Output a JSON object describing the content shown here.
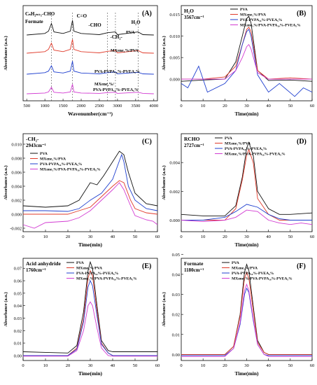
{
  "figure": {
    "panels": [
      {
        "id": "A",
        "letter": "(A)",
        "ylabel": "Absorbance (a.u.)",
        "xlabel": "Wavenumber(cm⁻¹)",
        "xticks": [
          "500",
          "1000",
          "1500",
          "2000",
          "2500",
          "3000",
          "3500",
          "4000"
        ],
        "annotations": [
          "CₙH₂ₙ₊₁-CHO",
          "Formate",
          "C=O",
          "-CHO",
          "-CH₂-",
          "H₂O"
        ],
        "trace_labels": [
          "PVA",
          "MXene₁%/PVA",
          "PVA-PVPA₁₀%-PVEA₅%",
          "MXene₁%/",
          "PVA-PVPA₁₀%-PVEA₅%"
        ]
      },
      {
        "id": "B",
        "letter": "(B)",
        "title": "H₂O",
        "subtitle": "3567cm⁻¹",
        "ylabel": "Absorbance (a.u.)",
        "xlabel": "Time(min)",
        "xticks": [
          "0",
          "10",
          "20",
          "30",
          "40",
          "50",
          "60"
        ],
        "yticks": [
          "0.000",
          "0.005",
          "0.010",
          "0.015"
        ]
      },
      {
        "id": "C",
        "letter": "(C)",
        "title": "-CH₂-",
        "subtitle": "2943cm⁻¹",
        "ylabel": "Absorbance (a.u.)",
        "xlabel": "Time(min)",
        "xticks": [
          "0",
          "10",
          "20",
          "30",
          "40",
          "50",
          "60"
        ],
        "yticks": [
          "-0.002",
          "0.000",
          "0.002",
          "0.004",
          "0.006",
          "0.008",
          "0.010"
        ]
      },
      {
        "id": "D",
        "letter": "(D)",
        "title": "RCHO",
        "subtitle": "2727cm⁻¹",
        "ylabel": "Absorbance (a.u.)",
        "xlabel": "Time(min)",
        "xticks": [
          "0",
          "10",
          "20",
          "30",
          "40",
          "50",
          "60"
        ],
        "yticks": [
          "0.000",
          "0.002",
          "0.004"
        ]
      },
      {
        "id": "E",
        "letter": "(E)",
        "title": "Acid anhydride",
        "subtitle": "1760cm⁻¹",
        "ylabel": "Absorbance (a.u.)",
        "xlabel": "Time(min)",
        "xticks": [
          "0",
          "10",
          "20",
          "30",
          "40",
          "50",
          "60"
        ],
        "yticks": [
          "0.00",
          "0.01",
          "0.02",
          "0.03",
          "0.04",
          "0.05",
          "0.06",
          "0.07"
        ]
      },
      {
        "id": "F",
        "letter": "(F)",
        "title": "Formate",
        "subtitle": "1180cm⁻¹",
        "ylabel": "Absorbance (a.u.)",
        "xlabel": "Time(min)",
        "xticks": [
          "0",
          "10",
          "20",
          "30",
          "40",
          "50",
          "60"
        ],
        "yticks": [
          "0.00",
          "0.01",
          "0.02",
          "0.03",
          "0.04",
          "0.05"
        ]
      }
    ],
    "legend": [
      "PVA",
      "MXene₁%/PVA",
      "PVA-PVPA₁₀%-PVEA₅%",
      "MXene₁%/PVA-PVPA₁₀%-PVEA₅%"
    ],
    "colors": {
      "PVA": "#111111",
      "MXene/PVA": "#e03a2a",
      "PVA-PVPA-PVEA": "#1f3fcf",
      "MXene/PVA-PVPA-PVEA": "#d23bd2"
    }
  },
  "chart_data": [
    {
      "type": "line",
      "panel": "A",
      "x_domain": [
        400,
        4100
      ],
      "series": [
        {
          "name": "PVA",
          "x": [
            500,
            1000,
            1100,
            1180,
            1250,
            1500,
            1700,
            1760,
            1800,
            2000,
            2500,
            2727,
            2943,
            3000,
            3567,
            3700,
            4000
          ],
          "values": [
            0.62,
            0.66,
            0.72,
            0.92,
            0.7,
            0.66,
            0.72,
            1.0,
            0.72,
            0.66,
            0.63,
            0.68,
            0.7,
            0.63,
            0.7,
            0.63,
            0.62
          ]
        },
        {
          "name": "MXene₁%/PVA",
          "x": [
            500,
            1000,
            1100,
            1180,
            1250,
            1500,
            1700,
            1760,
            1800,
            2000,
            2500,
            2727,
            2943,
            3000,
            3567,
            3700,
            4000
          ],
          "values": [
            0.42,
            0.46,
            0.52,
            0.68,
            0.5,
            0.46,
            0.52,
            0.78,
            0.52,
            0.46,
            0.43,
            0.47,
            0.49,
            0.43,
            0.49,
            0.43,
            0.42
          ]
        },
        {
          "name": "PVA-PVPA₁₀%-PVEA₅%",
          "x": [
            500,
            1000,
            1100,
            1180,
            1250,
            1500,
            1700,
            1760,
            1800,
            2000,
            2500,
            2727,
            2943,
            3000,
            3567,
            3700,
            4000
          ],
          "values": [
            0.22,
            0.26,
            0.3,
            0.44,
            0.28,
            0.25,
            0.3,
            0.56,
            0.3,
            0.25,
            0.23,
            0.26,
            0.28,
            0.23,
            0.27,
            0.23,
            0.22
          ]
        },
        {
          "name": "MXene₁%/PVA-PVPA₁₀%-PVEA₅%",
          "x": [
            500,
            1000,
            1100,
            1180,
            1250,
            1500,
            1700,
            1760,
            1800,
            2000,
            2500,
            2727,
            2943,
            3000,
            3567,
            3700,
            4000
          ],
          "values": [
            0.05,
            0.07,
            0.1,
            0.22,
            0.09,
            0.07,
            0.1,
            0.3,
            0.1,
            0.07,
            0.06,
            0.08,
            0.09,
            0.06,
            0.09,
            0.06,
            0.05
          ]
        }
      ]
    },
    {
      "type": "line",
      "panel": "B",
      "xlim": [
        0,
        60
      ],
      "ylim": [
        -0.005,
        0.017
      ],
      "series": [
        {
          "name": "PVA",
          "x": [
            0,
            10,
            20,
            25,
            28,
            30,
            31,
            32,
            35,
            40,
            50,
            60
          ],
          "values": [
            -0.0005,
            -0.0002,
            0.0,
            0.004,
            0.01,
            0.014,
            0.0145,
            0.013,
            0.002,
            -0.0003,
            -0.0002,
            -0.0005
          ]
        },
        {
          "name": "MXene₁%/PVA",
          "x": [
            0,
            10,
            20,
            25,
            28,
            30,
            31,
            32,
            35,
            40,
            50,
            60
          ],
          "values": [
            0.0,
            0.0,
            0.0005,
            0.003,
            0.008,
            0.0115,
            0.012,
            0.011,
            0.002,
            0.0,
            0.0003,
            0.0
          ]
        },
        {
          "name": "PVA-PVPA₁₀%-PVEA₅%",
          "x": [
            0,
            3,
            8,
            12,
            20,
            25,
            28,
            30,
            31,
            32,
            35,
            40,
            45,
            52,
            56,
            60
          ],
          "values": [
            -0.001,
            -0.002,
            0.003,
            -0.003,
            -0.001,
            0.002,
            0.008,
            0.011,
            0.0115,
            0.01,
            0.001,
            -0.003,
            -0.001,
            -0.004,
            -0.002,
            -0.003
          ]
        },
        {
          "name": "MXene₁%/PVA-PVPA₁₀%-PVEA₅%",
          "x": [
            0,
            10,
            20,
            25,
            28,
            30,
            31,
            32,
            35,
            40,
            50,
            60
          ],
          "values": [
            0.0,
            0.0,
            0.0,
            0.002,
            0.005,
            0.0075,
            0.008,
            0.007,
            0.0015,
            0.0,
            0.0,
            0.0
          ]
        }
      ]
    },
    {
      "type": "line",
      "panel": "C",
      "xlim": [
        0,
        60
      ],
      "ylim": [
        -0.0025,
        0.0115
      ],
      "series": [
        {
          "name": "PVA",
          "x": [
            0,
            10,
            20,
            25,
            30,
            33,
            36,
            40,
            43,
            45,
            47,
            50,
            55,
            60
          ],
          "values": [
            0.0012,
            0.001,
            0.0012,
            0.002,
            0.0045,
            0.0042,
            0.0055,
            0.0075,
            0.009,
            0.0085,
            0.006,
            0.003,
            0.0015,
            0.0012
          ]
        },
        {
          "name": "MXene₁%/PVA",
          "x": [
            0,
            10,
            20,
            25,
            30,
            35,
            40,
            43,
            45,
            48,
            50,
            55,
            60
          ],
          "values": [
            0.0,
            0.0,
            0.0,
            0.0005,
            0.001,
            0.0025,
            0.004,
            0.0048,
            0.0045,
            0.002,
            0.0008,
            0.0002,
            0.0
          ]
        },
        {
          "name": "PVA-PVPA₁₀%-PVEA₅%",
          "x": [
            0,
            10,
            20,
            25,
            30,
            35,
            40,
            44,
            45,
            47,
            50,
            55,
            60
          ],
          "values": [
            0.0005,
            0.0005,
            0.0004,
            0.0008,
            0.002,
            0.003,
            0.005,
            0.0085,
            0.0075,
            0.004,
            0.002,
            0.0008,
            0.0005
          ]
        },
        {
          "name": "MXene₁%/PVA-PVPA₁₀%-PVEA₅%",
          "x": [
            0,
            5,
            10,
            20,
            25,
            30,
            35,
            40,
            43,
            45,
            48,
            50,
            55,
            58,
            60
          ],
          "values": [
            -0.0015,
            -0.002,
            -0.0012,
            -0.001,
            -0.0005,
            0.0005,
            0.002,
            0.0035,
            0.0045,
            0.0035,
            0.0012,
            -0.0002,
            -0.0008,
            -0.001,
            -0.0015
          ]
        }
      ]
    },
    {
      "type": "line",
      "panel": "D",
      "xlim": [
        0,
        60
      ],
      "ylim": [
        -0.0008,
        0.006
      ],
      "series": [
        {
          "name": "PVA",
          "x": [
            0,
            10,
            20,
            25,
            28,
            30,
            31,
            33,
            35,
            40,
            45,
            50,
            60
          ],
          "values": [
            0.0004,
            0.0003,
            0.0003,
            0.001,
            0.003,
            0.005,
            0.0054,
            0.0045,
            0.002,
            0.0008,
            0.0004,
            0.0004,
            0.0005
          ]
        },
        {
          "name": "MXene₁%/PVA",
          "x": [
            0,
            10,
            20,
            25,
            28,
            30,
            31,
            33,
            35,
            40,
            45,
            50,
            60
          ],
          "values": [
            0.0,
            0.0,
            0.0,
            0.0008,
            0.0028,
            0.0045,
            0.0049,
            0.004,
            0.0015,
            0.0004,
            0.0,
            0.0,
            0.0
          ]
        },
        {
          "name": "PVA-PVPA₁₀%-PVEA₅%",
          "x": [
            0,
            10,
            20,
            25,
            30,
            35,
            40,
            45,
            50,
            60
          ],
          "values": [
            0.0,
            0.0,
            0.0002,
            0.0006,
            0.0011,
            0.0009,
            0.0004,
            0.0001,
            0.0,
            0.0
          ]
        },
        {
          "name": "MXene₁%/PVA-PVPA₁₀%-PVEA₅%",
          "x": [
            0,
            10,
            20,
            25,
            30,
            35,
            40,
            45,
            50,
            55,
            60
          ],
          "values": [
            0.0,
            -0.0001,
            0.0,
            0.0002,
            0.0007,
            0.0006,
            0.0,
            -0.0002,
            -0.0003,
            -0.0002,
            -0.0003
          ]
        }
      ]
    },
    {
      "type": "line",
      "panel": "E",
      "xlim": [
        0,
        60
      ],
      "ylim": [
        -0.004,
        0.078
      ],
      "series": [
        {
          "name": "PVA",
          "x": [
            0,
            10,
            20,
            24,
            27,
            29,
            30,
            31,
            33,
            35,
            38,
            40,
            50,
            60
          ],
          "values": [
            0.003,
            0.0025,
            0.002,
            0.008,
            0.035,
            0.068,
            0.075,
            0.07,
            0.04,
            0.012,
            0.004,
            0.003,
            0.003,
            0.003
          ]
        },
        {
          "name": "MXene₁%/PVA",
          "x": [
            0,
            10,
            20,
            24,
            27,
            29,
            30,
            31,
            33,
            35,
            38,
            40,
            50,
            60
          ],
          "values": [
            0.0,
            0.0,
            0.0,
            0.006,
            0.03,
            0.062,
            0.068,
            0.064,
            0.036,
            0.01,
            0.002,
            0.0,
            0.0,
            0.0
          ]
        },
        {
          "name": "PVA-PVPA₁₀%-PVEA₅%",
          "x": [
            0,
            10,
            20,
            24,
            27,
            29,
            30,
            31,
            33,
            35,
            38,
            40,
            50,
            60
          ],
          "values": [
            0.0,
            0.0,
            0.0,
            0.005,
            0.027,
            0.055,
            0.06,
            0.056,
            0.032,
            0.009,
            0.002,
            0.0,
            0.0,
            0.0
          ]
        },
        {
          "name": "MXene₁%/PVA-PVPA₁₀%-PVEA₅%",
          "x": [
            0,
            10,
            20,
            24,
            27,
            29,
            30,
            31,
            33,
            35,
            38,
            40,
            50,
            60
          ],
          "values": [
            -0.0005,
            -0.0005,
            -0.0005,
            0.004,
            0.02,
            0.04,
            0.043,
            0.04,
            0.022,
            0.006,
            0.0,
            -0.0005,
            -0.0005,
            -0.0005
          ]
        }
      ]
    },
    {
      "type": "line",
      "panel": "F",
      "xlim": [
        0,
        60
      ],
      "ylim": [
        -0.003,
        0.048
      ],
      "series": [
        {
          "name": "PVA",
          "x": [
            0,
            10,
            20,
            24,
            27,
            29,
            30,
            31,
            33,
            35,
            38,
            40,
            50,
            60
          ],
          "values": [
            0.0,
            0.0,
            0.0,
            0.004,
            0.02,
            0.041,
            0.045,
            0.042,
            0.024,
            0.007,
            0.001,
            0.0,
            0.0,
            0.0
          ]
        },
        {
          "name": "MXene₁%/PVA",
          "x": [
            0,
            10,
            20,
            24,
            27,
            29,
            30,
            31,
            33,
            35,
            38,
            40,
            50,
            60
          ],
          "values": [
            0.0,
            0.0,
            0.0,
            0.004,
            0.019,
            0.038,
            0.041,
            0.038,
            0.022,
            0.006,
            0.001,
            0.0,
            0.0,
            0.0
          ]
        },
        {
          "name": "PVA-PVPA₁₀%-PVEA₅%",
          "x": [
            0,
            10,
            20,
            24,
            27,
            29,
            30,
            31,
            33,
            35,
            38,
            40,
            50,
            60
          ],
          "values": [
            -0.0005,
            -0.0005,
            -0.0005,
            0.003,
            0.015,
            0.03,
            0.033,
            0.031,
            0.017,
            0.005,
            0.0,
            -0.0005,
            -0.0005,
            -0.0005
          ]
        },
        {
          "name": "MXene₁%/PVA-PVPA₁₀%-PVEA₅%",
          "x": [
            0,
            10,
            20,
            24,
            27,
            29,
            30,
            31,
            33,
            35,
            38,
            40,
            50,
            60
          ],
          "values": [
            -0.001,
            -0.001,
            -0.001,
            0.003,
            0.016,
            0.032,
            0.035,
            0.032,
            0.018,
            0.005,
            0.0,
            -0.001,
            -0.001,
            -0.001
          ]
        }
      ]
    }
  ]
}
